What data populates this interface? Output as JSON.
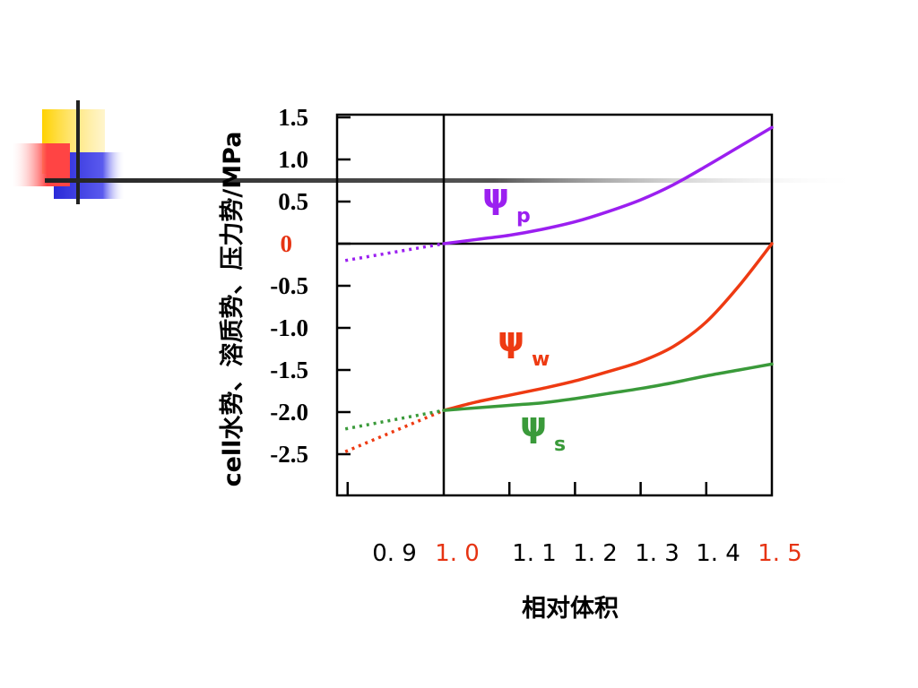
{
  "colors": {
    "psi_p": "#9b1ff0",
    "psi_w": "#ee3a12",
    "psi_s": "#3a9a3a",
    "zero_tick": "#e63312",
    "deco_yellow": "#ffd200",
    "deco_blue": "#2a2ad8",
    "deco_red": "#ff3a3a"
  },
  "chart_data": {
    "type": "line",
    "xlabel": "相对体积",
    "ylabel": "cell水势、溶质势、压力势/MPa",
    "xlim": [
      0.85,
      1.5
    ],
    "ylim": [
      -3.0,
      1.5
    ],
    "y_ticks": [
      {
        "label": "1.5",
        "value": 1.5
      },
      {
        "label": "1.0",
        "value": 1.0
      },
      {
        "label": "0.5",
        "value": 0.5
      },
      {
        "label": "0",
        "value": 0,
        "highlight": true
      },
      {
        "label": "-0.5",
        "value": -0.5
      },
      {
        "label": "-1.0",
        "value": -1.0
      },
      {
        "label": "-1.5",
        "value": -1.5
      },
      {
        "label": "-2.0",
        "value": -2.0
      },
      {
        "label": "-2.5",
        "value": -2.5
      }
    ],
    "x_ticks": [
      {
        "label": "0. 9",
        "value": 0.9,
        "highlight": false
      },
      {
        "label": "1. 0",
        "value": 1.0,
        "highlight": true
      },
      {
        "label": "1. 1",
        "value": 1.1,
        "highlight": false
      },
      {
        "label": "1. 2",
        "value": 1.2,
        "highlight": false
      },
      {
        "label": "1. 3",
        "value": 1.3,
        "highlight": false
      },
      {
        "label": "1. 4",
        "value": 1.4,
        "highlight": false
      },
      {
        "label": "1. 5",
        "value": 1.5,
        "highlight": true
      }
    ],
    "series": [
      {
        "name": "ψp",
        "symbol": "ψ",
        "subscript": "p",
        "color": "#9b1ff0",
        "dashed_x": [
          0.85,
          1.0
        ],
        "dashed_y": [
          -0.2,
          0.0
        ],
        "x": [
          1.0,
          1.05,
          1.1,
          1.15,
          1.2,
          1.25,
          1.3,
          1.35,
          1.4,
          1.45,
          1.5
        ],
        "y": [
          0.0,
          0.05,
          0.1,
          0.17,
          0.26,
          0.38,
          0.52,
          0.7,
          0.92,
          1.15,
          1.38
        ]
      },
      {
        "name": "ψw",
        "symbol": "ψ",
        "subscript": "w",
        "color": "#ee3a12",
        "dashed_x": [
          0.85,
          1.0
        ],
        "dashed_y": [
          -2.47,
          -1.98
        ],
        "x": [
          1.0,
          1.05,
          1.1,
          1.15,
          1.2,
          1.25,
          1.3,
          1.35,
          1.4,
          1.45,
          1.5
        ],
        "y": [
          -1.98,
          -1.88,
          -1.8,
          -1.72,
          -1.63,
          -1.52,
          -1.4,
          -1.22,
          -0.93,
          -0.5,
          0.0
        ]
      },
      {
        "name": "ψs",
        "symbol": "ψ",
        "subscript": "s",
        "color": "#3a9a3a",
        "dashed_x": [
          0.85,
          1.0
        ],
        "dashed_y": [
          -2.2,
          -1.98
        ],
        "x": [
          1.0,
          1.05,
          1.1,
          1.15,
          1.2,
          1.25,
          1.3,
          1.35,
          1.4,
          1.45,
          1.5
        ],
        "y": [
          -1.98,
          -1.95,
          -1.92,
          -1.89,
          -1.84,
          -1.78,
          -1.72,
          -1.65,
          -1.57,
          -1.5,
          -1.43
        ]
      }
    ]
  }
}
